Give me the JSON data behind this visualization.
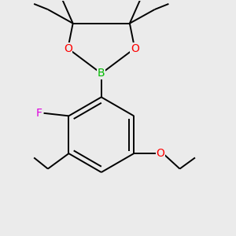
{
  "background_color": "#ebebeb",
  "bond_color": "#000000",
  "atom_colors": {
    "B": "#00bb00",
    "O": "#ff0000",
    "F": "#dd00dd",
    "C": "#000000"
  },
  "figsize": [
    3.0,
    3.0
  ],
  "dpi": 100,
  "bond_lw": 1.4,
  "font_size_atom": 9.5,
  "font_size_small": 8.0
}
